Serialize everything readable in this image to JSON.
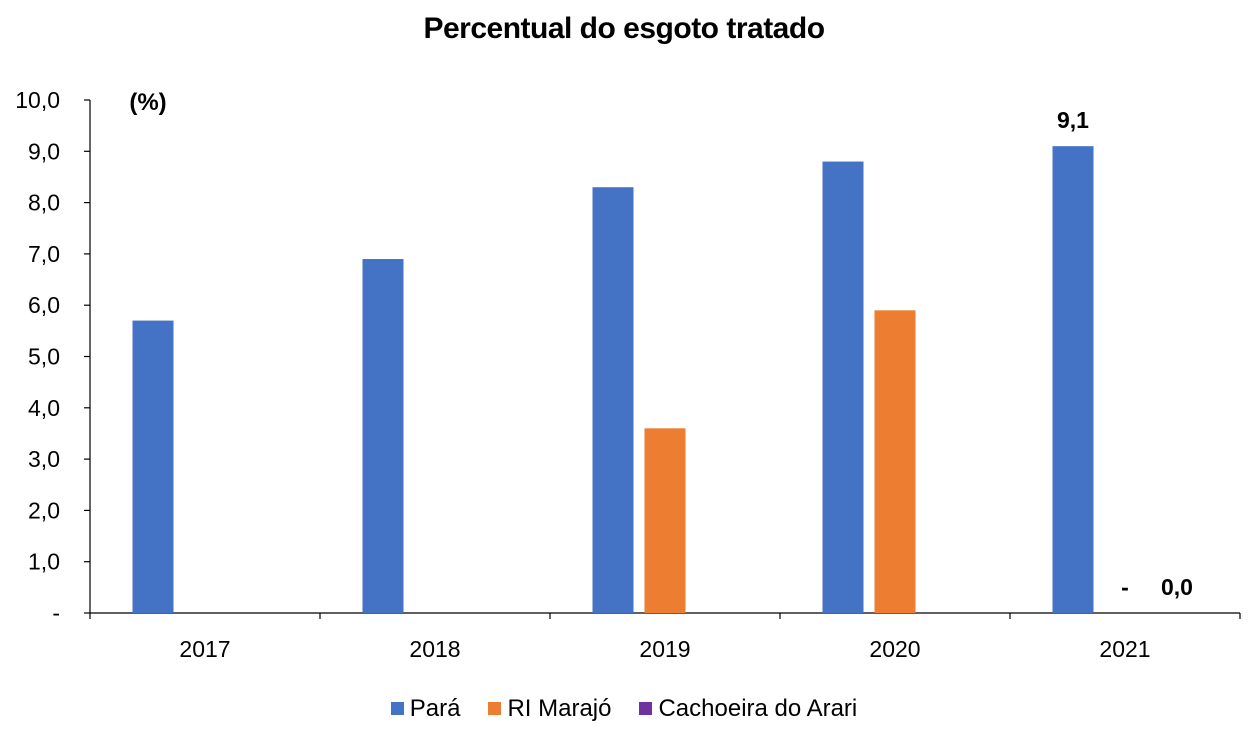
{
  "chart_data": {
    "type": "bar",
    "title": "Percentual do esgoto tratado",
    "unit_label": "(%)",
    "categories": [
      "2017",
      "2018",
      "2019",
      "2020",
      "2021"
    ],
    "series": [
      {
        "name": "Pará",
        "color": "#4472C4",
        "values": [
          5.7,
          6.9,
          8.3,
          8.8,
          9.1
        ]
      },
      {
        "name": "RI Marajó",
        "color": "#ED7D31",
        "values": [
          null,
          null,
          3.6,
          5.9,
          0
        ]
      },
      {
        "name": "Cachoeira do Arari",
        "color": "#7030A0",
        "values": [
          null,
          null,
          null,
          null,
          0
        ]
      }
    ],
    "data_labels": [
      {
        "text": "9,1",
        "category": "2021",
        "series": "Pará"
      },
      {
        "text": "-",
        "category": "2021",
        "series": "RI Marajó"
      },
      {
        "text": "0,0",
        "category": "2021",
        "series": "Cachoeira do Arari"
      }
    ],
    "y_ticks": [
      "-",
      "1,0",
      "2,0",
      "3,0",
      "4,0",
      "5,0",
      "6,0",
      "7,0",
      "8,0",
      "9,0",
      "10,0"
    ],
    "ylim": [
      0,
      10
    ],
    "grid": false,
    "legend_position": "bottom"
  }
}
